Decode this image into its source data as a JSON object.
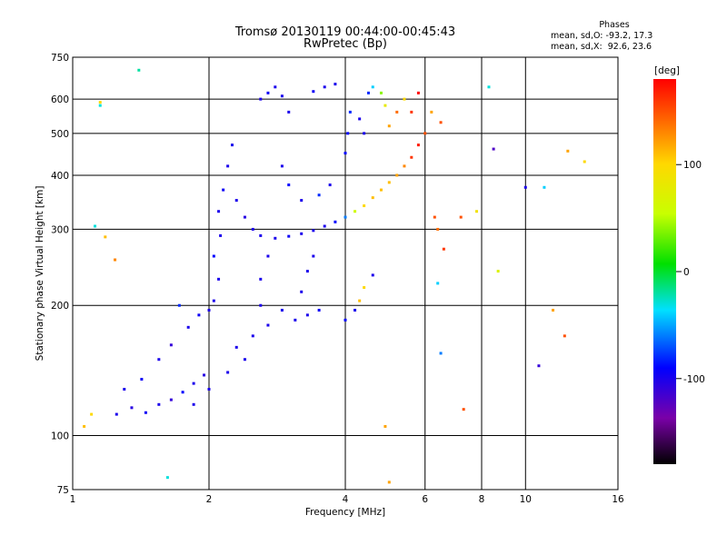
{
  "chart_data": {
    "type": "scatter",
    "title": "Tromsø 20130119 00:44:00-00:45:43",
    "subtitle": "RwPretec (Bp)",
    "xlabel": "Frequency [MHz]",
    "ylabel": "Stationary phase Virtual Height [km]",
    "x_scale": "log",
    "y_scale": "log",
    "xlim": [
      1,
      16
    ],
    "ylim": [
      75,
      750
    ],
    "x_ticks": [
      1,
      2,
      4,
      6,
      8,
      10,
      16
    ],
    "y_ticks": [
      75,
      100,
      200,
      300,
      400,
      500,
      600,
      750
    ],
    "x_grid": [
      2,
      4,
      6,
      8,
      10
    ],
    "y_grid": [
      100,
      200,
      300,
      400,
      500,
      600
    ],
    "colorbar": {
      "label": "[deg]",
      "range": [
        -180,
        180
      ],
      "ticks": [
        100,
        0,
        -100
      ],
      "colormap": "rainbow (black-purple-blue-cyan-green-yellow-red)"
    },
    "stats": {
      "heading": "Phases",
      "o_line": "mean, sd,O: -93.2, 17.3",
      "x_line": "mean, sd,X:  92.6, 23.6"
    },
    "series": [
      {
        "values": [
          [
            1.25,
            112,
            -100
          ],
          [
            1.35,
            116,
            -105
          ],
          [
            1.45,
            113,
            -95
          ],
          [
            1.55,
            118,
            -100
          ],
          [
            1.65,
            121,
            -110
          ],
          [
            1.75,
            126,
            -90
          ],
          [
            1.85,
            132,
            -100
          ],
          [
            1.95,
            138,
            -105
          ],
          [
            1.3,
            128,
            -100
          ],
          [
            1.42,
            135,
            -95
          ],
          [
            1.55,
            150,
            -100
          ],
          [
            1.65,
            162,
            -110
          ],
          [
            1.8,
            178,
            -100
          ],
          [
            1.9,
            190,
            -95
          ],
          [
            2.0,
            195,
            -100
          ],
          [
            1.72,
            200,
            -80
          ],
          [
            2.05,
            205,
            -100
          ],
          [
            2.1,
            230,
            -100
          ],
          [
            2.05,
            260,
            -90
          ],
          [
            2.12,
            290,
            -100
          ],
          [
            2.1,
            330,
            -100
          ],
          [
            2.15,
            370,
            -95
          ],
          [
            2.2,
            420,
            -100
          ],
          [
            2.25,
            470,
            -100
          ],
          [
            2.3,
            350,
            -100
          ],
          [
            2.4,
            320,
            -105
          ],
          [
            2.5,
            300,
            -100
          ],
          [
            2.6,
            290,
            -100
          ],
          [
            2.8,
            286,
            -100
          ],
          [
            3.0,
            289,
            -95
          ],
          [
            3.2,
            293,
            -100
          ],
          [
            3.4,
            298,
            -100
          ],
          [
            3.6,
            305,
            -100
          ],
          [
            3.8,
            312,
            -90
          ],
          [
            4.0,
            320,
            -60
          ],
          [
            4.2,
            330,
            60
          ],
          [
            4.4,
            340,
            100
          ],
          [
            4.6,
            355,
            110
          ],
          [
            4.8,
            370,
            110
          ],
          [
            5.0,
            385,
            110
          ],
          [
            5.2,
            400,
            120
          ],
          [
            5.4,
            420,
            130
          ],
          [
            5.6,
            440,
            160
          ],
          [
            5.8,
            470,
            170
          ],
          [
            2.6,
            230,
            -100
          ],
          [
            2.7,
            260,
            -100
          ],
          [
            2.6,
            200,
            -100
          ],
          [
            2.7,
            180,
            -100
          ],
          [
            2.9,
            195,
            -100
          ],
          [
            3.1,
            185,
            -100
          ],
          [
            3.3,
            190,
            -100
          ],
          [
            3.5,
            195,
            -95
          ],
          [
            2.4,
            150,
            -100
          ],
          [
            2.2,
            140,
            -100
          ],
          [
            2.0,
            128,
            -100
          ],
          [
            1.85,
            118,
            -100
          ],
          [
            2.5,
            170,
            -100
          ],
          [
            2.3,
            160,
            -100
          ],
          [
            2.6,
            600,
            -100
          ],
          [
            2.7,
            620,
            -95
          ],
          [
            2.8,
            640,
            -100
          ],
          [
            2.9,
            610,
            -100
          ],
          [
            3.0,
            560,
            -100
          ],
          [
            3.4,
            625,
            -95
          ],
          [
            3.6,
            640,
            -100
          ],
          [
            3.8,
            650,
            -100
          ],
          [
            4.0,
            450,
            -90
          ],
          [
            4.05,
            500,
            -90
          ],
          [
            4.1,
            560,
            -80
          ],
          [
            4.3,
            540,
            -100
          ],
          [
            4.4,
            500,
            -100
          ],
          [
            4.5,
            620,
            -80
          ],
          [
            4.6,
            640,
            -40
          ],
          [
            4.8,
            620,
            40
          ],
          [
            4.9,
            580,
            80
          ],
          [
            5.0,
            520,
            120
          ],
          [
            5.2,
            560,
            140
          ],
          [
            5.4,
            600,
            100
          ],
          [
            5.6,
            560,
            160
          ],
          [
            5.8,
            620,
            180
          ],
          [
            6.0,
            500,
            150
          ],
          [
            6.2,
            560,
            120
          ],
          [
            6.5,
            530,
            150
          ],
          [
            4.4,
            220,
            100
          ],
          [
            4.3,
            205,
            110
          ],
          [
            4.2,
            195,
            -100
          ],
          [
            4.0,
            185,
            -90
          ],
          [
            3.3,
            240,
            -100
          ],
          [
            3.2,
            215,
            -100
          ],
          [
            3.4,
            260,
            -100
          ],
          [
            2.9,
            420,
            -100
          ],
          [
            3.0,
            380,
            -90
          ],
          [
            3.2,
            350,
            -100
          ],
          [
            3.5,
            360,
            -80
          ],
          [
            3.7,
            380,
            -100
          ],
          [
            4.6,
            235,
            -100
          ],
          [
            6.3,
            320,
            150
          ],
          [
            6.4,
            300,
            140
          ],
          [
            6.6,
            270,
            160
          ],
          [
            7.2,
            320,
            150
          ],
          [
            7.3,
            115,
            150
          ],
          [
            6.5,
            155,
            -60
          ],
          [
            6.4,
            225,
            -40
          ],
          [
            8.5,
            460,
            -120
          ],
          [
            10.0,
            375,
            -100
          ],
          [
            11.0,
            375,
            -40
          ],
          [
            11.5,
            195,
            120
          ],
          [
            12.2,
            170,
            150
          ],
          [
            10.7,
            145,
            -110
          ],
          [
            13.5,
            430,
            100
          ],
          [
            12.4,
            455,
            120
          ],
          [
            8.3,
            640,
            -30
          ],
          [
            1.12,
            305,
            -30
          ],
          [
            1.15,
            580,
            -30
          ],
          [
            1.15,
            590,
            100
          ],
          [
            1.18,
            288,
            110
          ],
          [
            1.4,
            700,
            -20
          ],
          [
            1.1,
            112,
            100
          ],
          [
            1.06,
            105,
            110
          ],
          [
            1.24,
            255,
            130
          ],
          [
            1.62,
            80,
            -30
          ],
          [
            4.9,
            105,
            120
          ],
          [
            5.0,
            78,
            120
          ],
          [
            7.8,
            330,
            90
          ],
          [
            8.7,
            240,
            70
          ]
        ]
      }
    ]
  }
}
